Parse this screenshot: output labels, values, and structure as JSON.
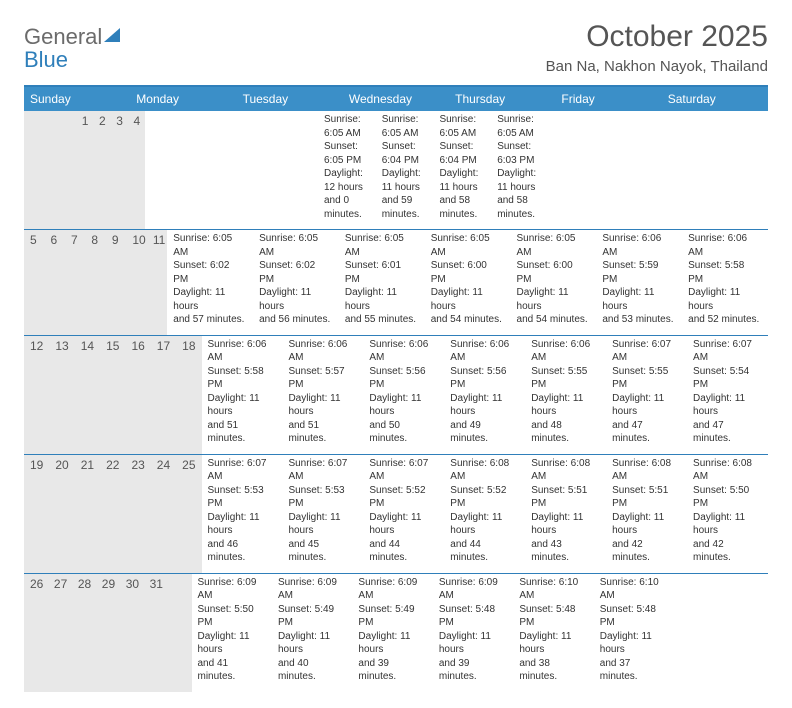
{
  "logo": {
    "text_gray": "General",
    "text_blue": "Blue",
    "mark_color": "#2f7fba"
  },
  "title": "October 2025",
  "location": "Ban Na, Nakhon Nayok, Thailand",
  "colors": {
    "header_bg": "#3b8fc8",
    "accent_border": "#2f7fba",
    "daynum_bg": "#e8e8e8",
    "text_muted": "#555555",
    "text_body": "#333333",
    "logo_gray": "#6b6b6b"
  },
  "fonts": {
    "title_size_pt": 22,
    "location_size_pt": 11,
    "dayname_size_pt": 9,
    "daynum_size_pt": 9,
    "detail_size_pt": 7.5
  },
  "daynames": [
    "Sunday",
    "Monday",
    "Tuesday",
    "Wednesday",
    "Thursday",
    "Friday",
    "Saturday"
  ],
  "weeks": [
    [
      {
        "n": "",
        "sunrise": "",
        "sunset": "",
        "daylight1": "",
        "daylight2": ""
      },
      {
        "n": "",
        "sunrise": "",
        "sunset": "",
        "daylight1": "",
        "daylight2": ""
      },
      {
        "n": "",
        "sunrise": "",
        "sunset": "",
        "daylight1": "",
        "daylight2": ""
      },
      {
        "n": "1",
        "sunrise": "Sunrise: 6:05 AM",
        "sunset": "Sunset: 6:05 PM",
        "daylight1": "Daylight: 12 hours",
        "daylight2": "and 0 minutes."
      },
      {
        "n": "2",
        "sunrise": "Sunrise: 6:05 AM",
        "sunset": "Sunset: 6:04 PM",
        "daylight1": "Daylight: 11 hours",
        "daylight2": "and 59 minutes."
      },
      {
        "n": "3",
        "sunrise": "Sunrise: 6:05 AM",
        "sunset": "Sunset: 6:04 PM",
        "daylight1": "Daylight: 11 hours",
        "daylight2": "and 58 minutes."
      },
      {
        "n": "4",
        "sunrise": "Sunrise: 6:05 AM",
        "sunset": "Sunset: 6:03 PM",
        "daylight1": "Daylight: 11 hours",
        "daylight2": "and 58 minutes."
      }
    ],
    [
      {
        "n": "5",
        "sunrise": "Sunrise: 6:05 AM",
        "sunset": "Sunset: 6:02 PM",
        "daylight1": "Daylight: 11 hours",
        "daylight2": "and 57 minutes."
      },
      {
        "n": "6",
        "sunrise": "Sunrise: 6:05 AM",
        "sunset": "Sunset: 6:02 PM",
        "daylight1": "Daylight: 11 hours",
        "daylight2": "and 56 minutes."
      },
      {
        "n": "7",
        "sunrise": "Sunrise: 6:05 AM",
        "sunset": "Sunset: 6:01 PM",
        "daylight1": "Daylight: 11 hours",
        "daylight2": "and 55 minutes."
      },
      {
        "n": "8",
        "sunrise": "Sunrise: 6:05 AM",
        "sunset": "Sunset: 6:00 PM",
        "daylight1": "Daylight: 11 hours",
        "daylight2": "and 54 minutes."
      },
      {
        "n": "9",
        "sunrise": "Sunrise: 6:05 AM",
        "sunset": "Sunset: 6:00 PM",
        "daylight1": "Daylight: 11 hours",
        "daylight2": "and 54 minutes."
      },
      {
        "n": "10",
        "sunrise": "Sunrise: 6:06 AM",
        "sunset": "Sunset: 5:59 PM",
        "daylight1": "Daylight: 11 hours",
        "daylight2": "and 53 minutes."
      },
      {
        "n": "11",
        "sunrise": "Sunrise: 6:06 AM",
        "sunset": "Sunset: 5:58 PM",
        "daylight1": "Daylight: 11 hours",
        "daylight2": "and 52 minutes."
      }
    ],
    [
      {
        "n": "12",
        "sunrise": "Sunrise: 6:06 AM",
        "sunset": "Sunset: 5:58 PM",
        "daylight1": "Daylight: 11 hours",
        "daylight2": "and 51 minutes."
      },
      {
        "n": "13",
        "sunrise": "Sunrise: 6:06 AM",
        "sunset": "Sunset: 5:57 PM",
        "daylight1": "Daylight: 11 hours",
        "daylight2": "and 51 minutes."
      },
      {
        "n": "14",
        "sunrise": "Sunrise: 6:06 AM",
        "sunset": "Sunset: 5:56 PM",
        "daylight1": "Daylight: 11 hours",
        "daylight2": "and 50 minutes."
      },
      {
        "n": "15",
        "sunrise": "Sunrise: 6:06 AM",
        "sunset": "Sunset: 5:56 PM",
        "daylight1": "Daylight: 11 hours",
        "daylight2": "and 49 minutes."
      },
      {
        "n": "16",
        "sunrise": "Sunrise: 6:06 AM",
        "sunset": "Sunset: 5:55 PM",
        "daylight1": "Daylight: 11 hours",
        "daylight2": "and 48 minutes."
      },
      {
        "n": "17",
        "sunrise": "Sunrise: 6:07 AM",
        "sunset": "Sunset: 5:55 PM",
        "daylight1": "Daylight: 11 hours",
        "daylight2": "and 47 minutes."
      },
      {
        "n": "18",
        "sunrise": "Sunrise: 6:07 AM",
        "sunset": "Sunset: 5:54 PM",
        "daylight1": "Daylight: 11 hours",
        "daylight2": "and 47 minutes."
      }
    ],
    [
      {
        "n": "19",
        "sunrise": "Sunrise: 6:07 AM",
        "sunset": "Sunset: 5:53 PM",
        "daylight1": "Daylight: 11 hours",
        "daylight2": "and 46 minutes."
      },
      {
        "n": "20",
        "sunrise": "Sunrise: 6:07 AM",
        "sunset": "Sunset: 5:53 PM",
        "daylight1": "Daylight: 11 hours",
        "daylight2": "and 45 minutes."
      },
      {
        "n": "21",
        "sunrise": "Sunrise: 6:07 AM",
        "sunset": "Sunset: 5:52 PM",
        "daylight1": "Daylight: 11 hours",
        "daylight2": "and 44 minutes."
      },
      {
        "n": "22",
        "sunrise": "Sunrise: 6:08 AM",
        "sunset": "Sunset: 5:52 PM",
        "daylight1": "Daylight: 11 hours",
        "daylight2": "and 44 minutes."
      },
      {
        "n": "23",
        "sunrise": "Sunrise: 6:08 AM",
        "sunset": "Sunset: 5:51 PM",
        "daylight1": "Daylight: 11 hours",
        "daylight2": "and 43 minutes."
      },
      {
        "n": "24",
        "sunrise": "Sunrise: 6:08 AM",
        "sunset": "Sunset: 5:51 PM",
        "daylight1": "Daylight: 11 hours",
        "daylight2": "and 42 minutes."
      },
      {
        "n": "25",
        "sunrise": "Sunrise: 6:08 AM",
        "sunset": "Sunset: 5:50 PM",
        "daylight1": "Daylight: 11 hours",
        "daylight2": "and 42 minutes."
      }
    ],
    [
      {
        "n": "26",
        "sunrise": "Sunrise: 6:09 AM",
        "sunset": "Sunset: 5:50 PM",
        "daylight1": "Daylight: 11 hours",
        "daylight2": "and 41 minutes."
      },
      {
        "n": "27",
        "sunrise": "Sunrise: 6:09 AM",
        "sunset": "Sunset: 5:49 PM",
        "daylight1": "Daylight: 11 hours",
        "daylight2": "and 40 minutes."
      },
      {
        "n": "28",
        "sunrise": "Sunrise: 6:09 AM",
        "sunset": "Sunset: 5:49 PM",
        "daylight1": "Daylight: 11 hours",
        "daylight2": "and 39 minutes."
      },
      {
        "n": "29",
        "sunrise": "Sunrise: 6:09 AM",
        "sunset": "Sunset: 5:48 PM",
        "daylight1": "Daylight: 11 hours",
        "daylight2": "and 39 minutes."
      },
      {
        "n": "30",
        "sunrise": "Sunrise: 6:10 AM",
        "sunset": "Sunset: 5:48 PM",
        "daylight1": "Daylight: 11 hours",
        "daylight2": "and 38 minutes."
      },
      {
        "n": "31",
        "sunrise": "Sunrise: 6:10 AM",
        "sunset": "Sunset: 5:48 PM",
        "daylight1": "Daylight: 11 hours",
        "daylight2": "and 37 minutes."
      },
      {
        "n": "",
        "sunrise": "",
        "sunset": "",
        "daylight1": "",
        "daylight2": ""
      }
    ]
  ]
}
